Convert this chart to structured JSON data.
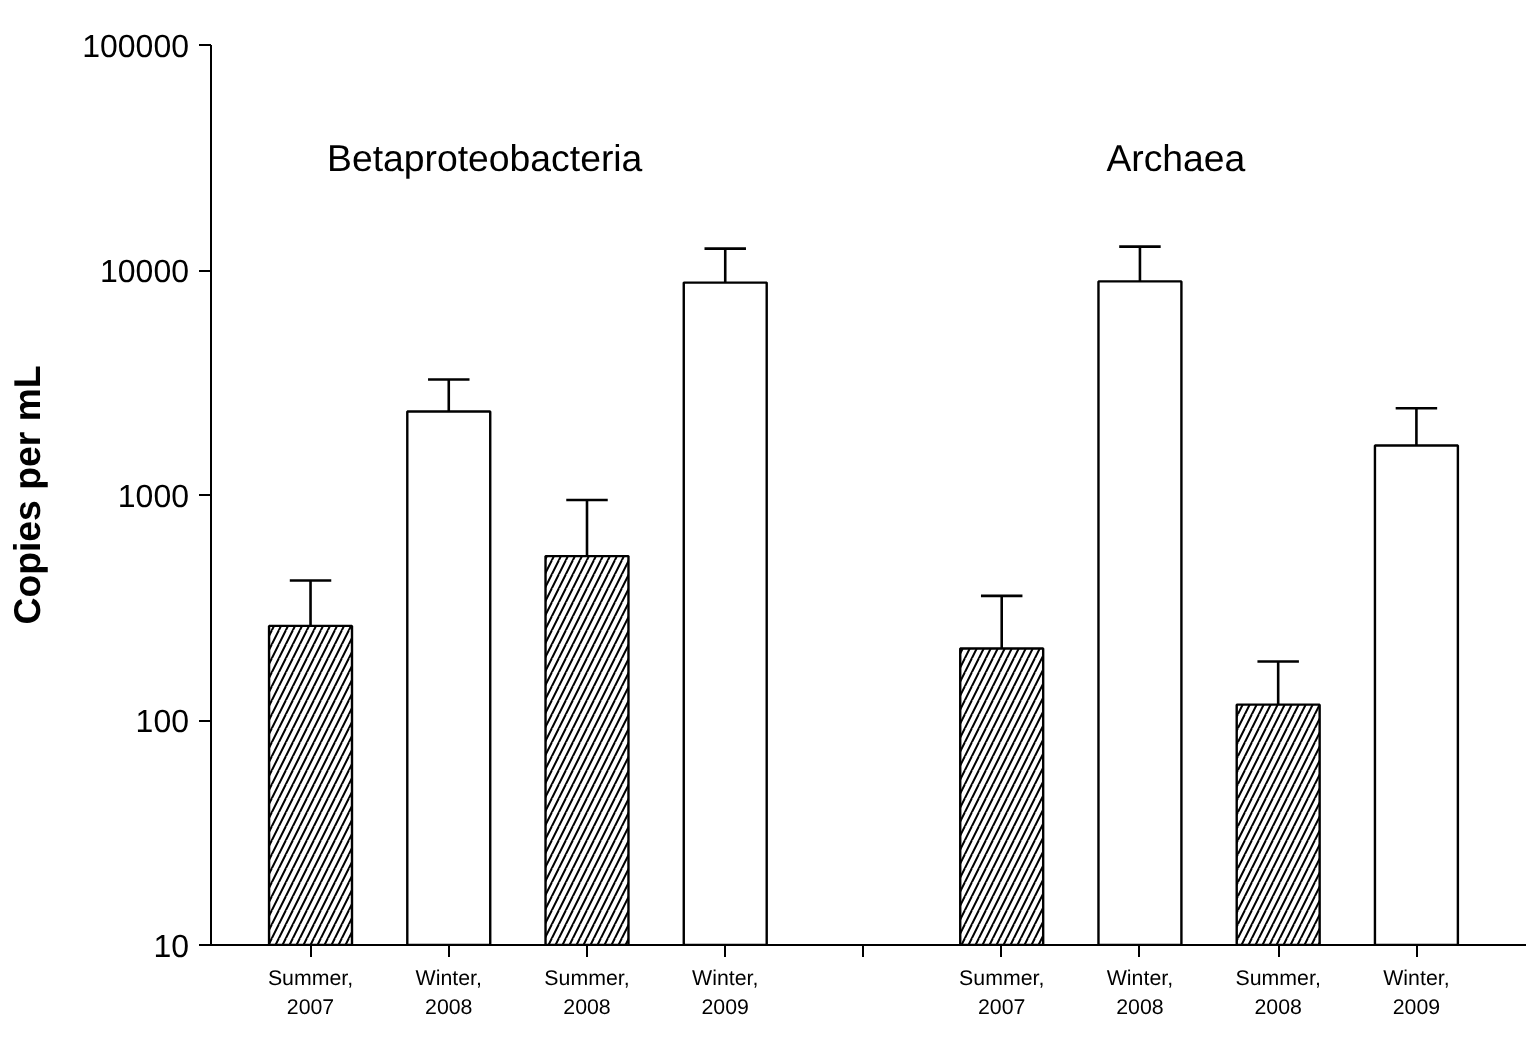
{
  "chart_data": {
    "type": "bar",
    "ylabel": "Copies per mL",
    "categories": [
      "Summer,\n2007",
      "Winter,\n2008",
      "Summer,\n2008",
      "Winter,\n2009",
      null,
      "Summer,\n2007",
      "Winter,\n2008",
      "Summer,\n2008",
      "Winter,\n2009"
    ],
    "values": [
      262,
      2350,
      535,
      8790,
      null,
      208,
      8900,
      117,
      1660
    ],
    "errors": [
      [
        262,
        417
      ],
      [
        2350,
        3260
      ],
      [
        535,
        950
      ],
      [
        8790,
        12450
      ],
      null,
      [
        208,
        356
      ],
      [
        8900,
        12700
      ],
      [
        117,
        182
      ],
      [
        1660,
        2430
      ]
    ],
    "colors": [
      "#000000",
      "#ffffff",
      "#000000",
      "#ffffff",
      null,
      "#000000",
      "#ffffff",
      "#000000",
      "#ffffff"
    ],
    "log": true,
    "ylim": [
      10,
      100000
    ],
    "yticks": [
      10,
      100,
      1000,
      10000,
      100000
    ],
    "grid": false,
    "annotations": [
      "Betaproteobacteria",
      "Archaea"
    ]
  }
}
